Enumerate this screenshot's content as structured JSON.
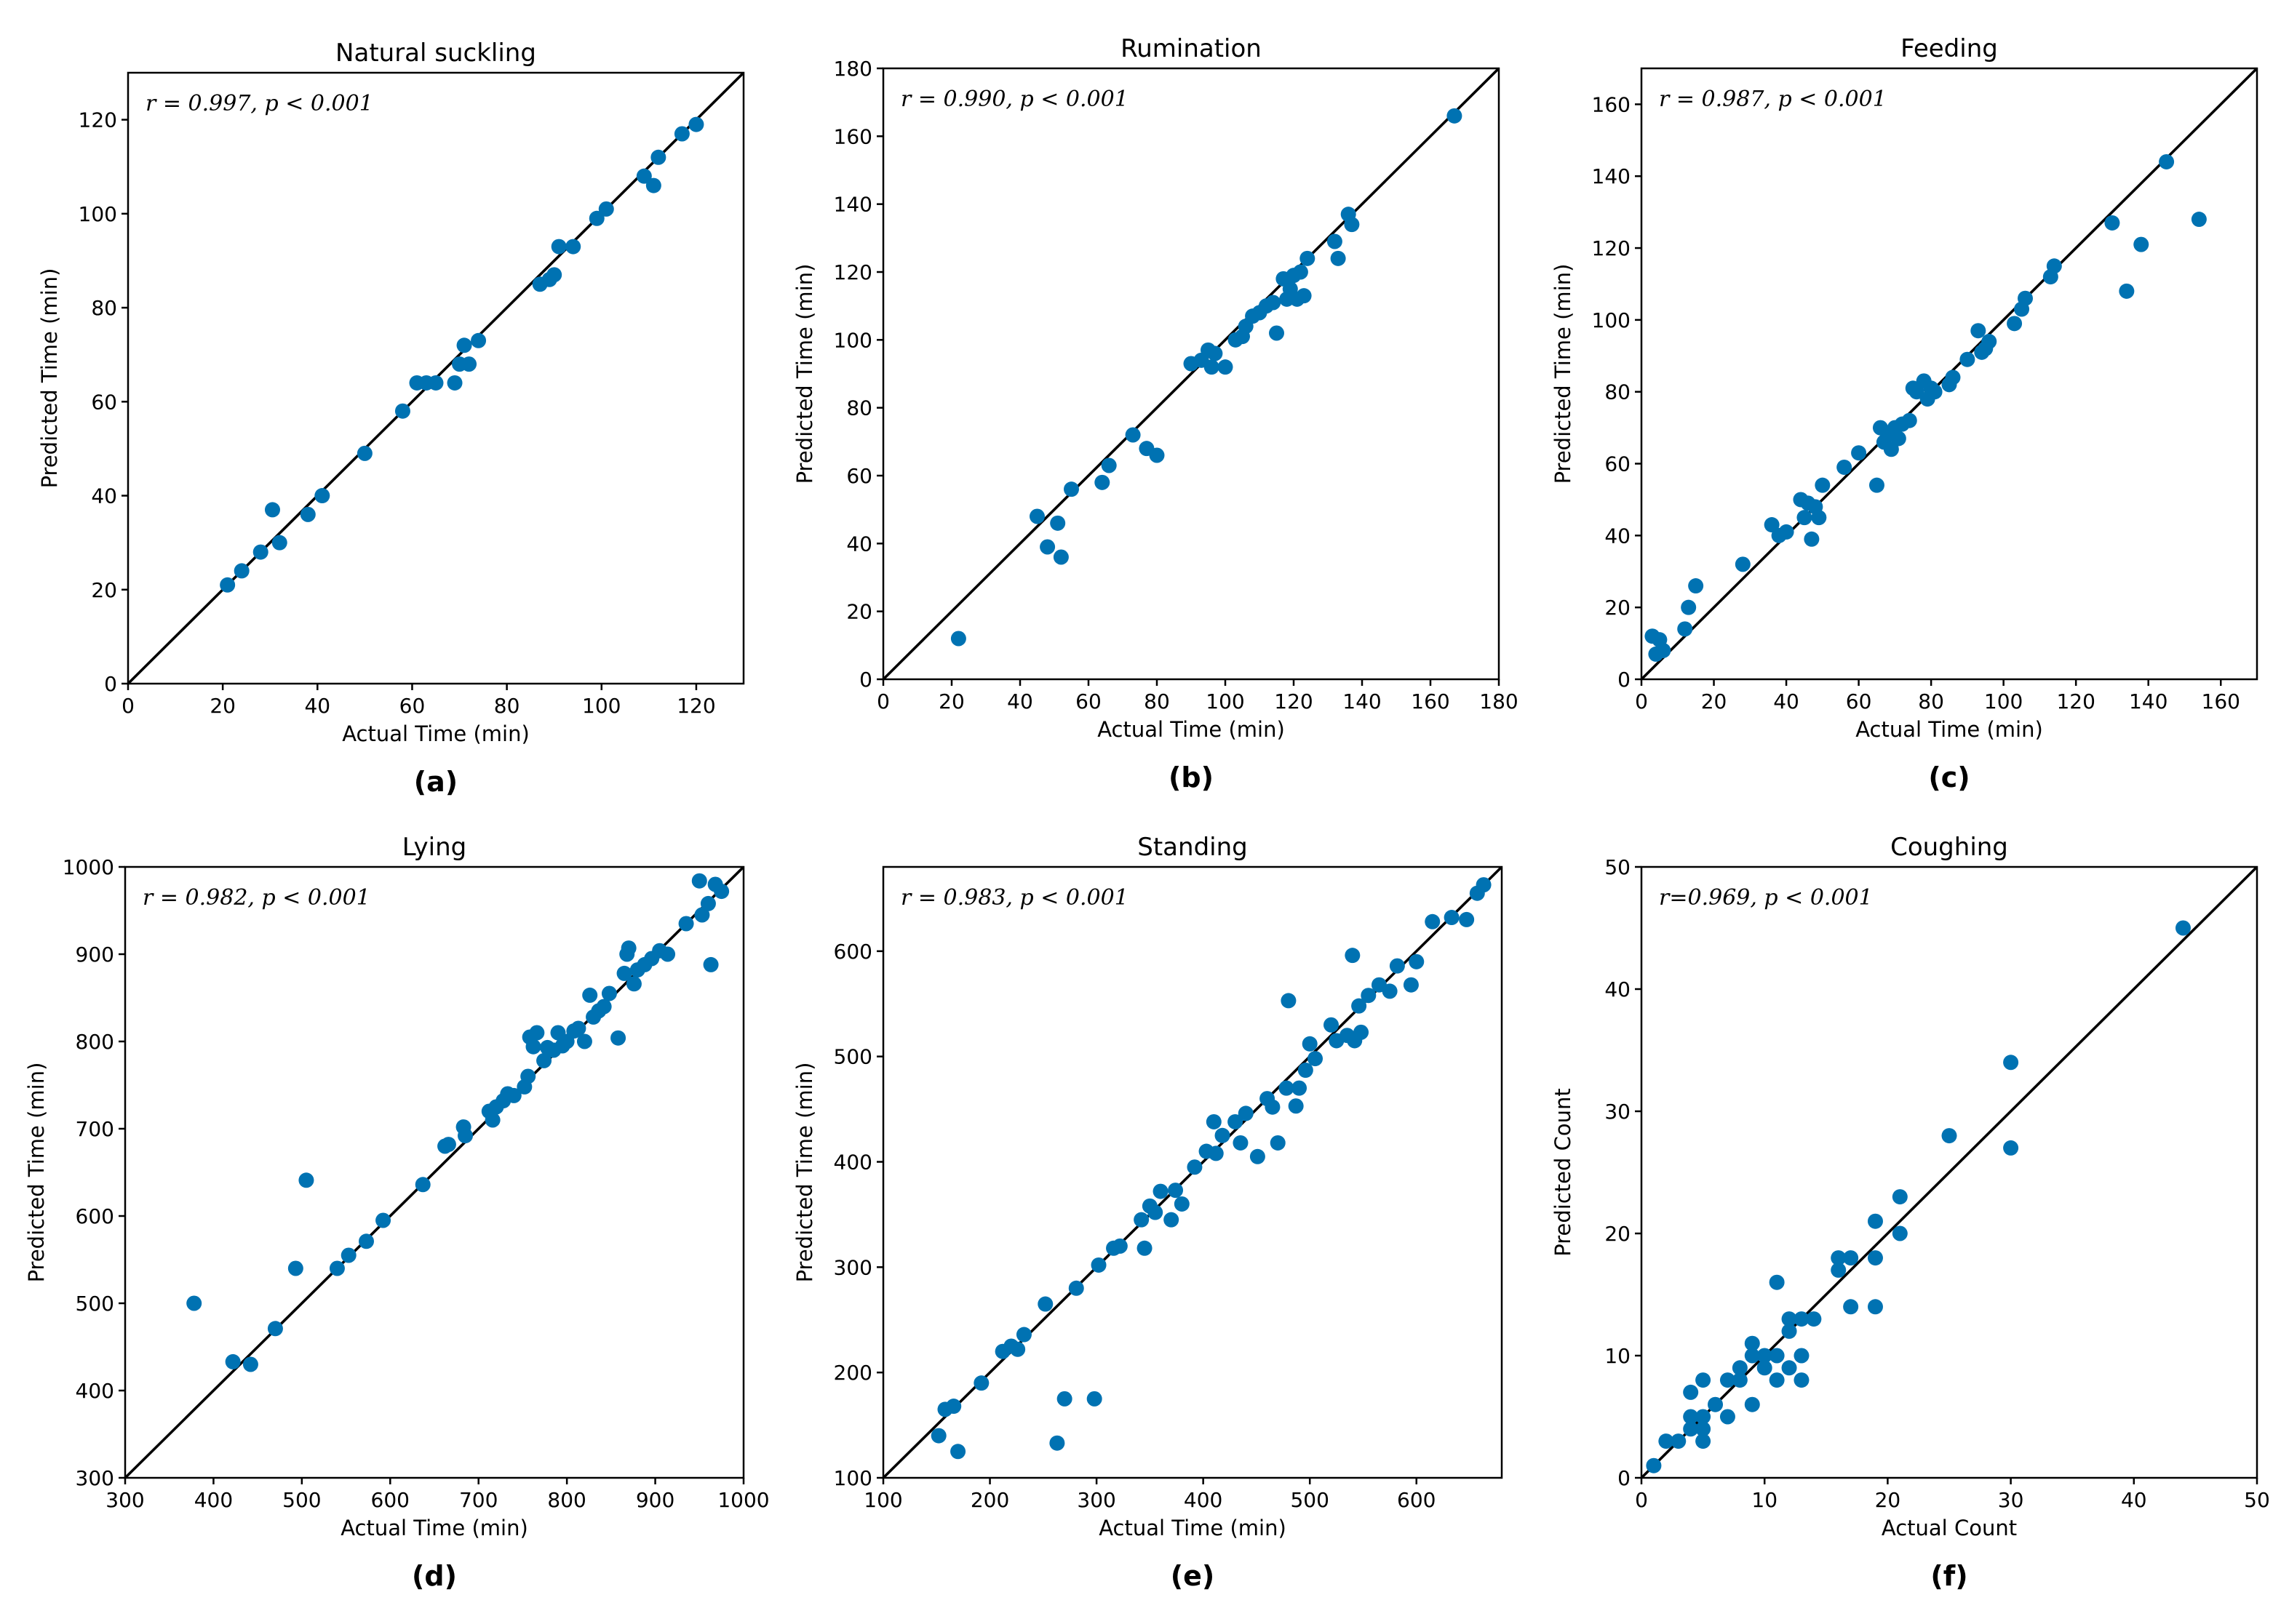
{
  "point_color": "#0072B2",
  "chart_data": [
    {
      "type": "scatter",
      "title": "Natural suckling",
      "xlabel": "Actual Time (min)",
      "ylabel": "Predicted Time (min)",
      "annotation": "r = 0.997, p < 0.001",
      "panel_label": "(a)",
      "xlim": [
        0,
        130
      ],
      "ylim": [
        0,
        130
      ],
      "xticks": [
        0,
        20,
        40,
        60,
        80,
        100,
        120
      ],
      "yticks": [
        0,
        20,
        40,
        60,
        80,
        100,
        120
      ],
      "x": [
        21,
        24,
        28,
        30.5,
        32,
        38,
        41,
        50,
        58,
        61,
        63,
        65,
        69,
        70,
        71,
        72,
        74,
        87,
        89,
        90,
        91,
        94,
        99,
        101,
        109,
        111,
        112,
        117,
        120
      ],
      "y": [
        21,
        24,
        28,
        37,
        30,
        36,
        40,
        49,
        58,
        64,
        64,
        64,
        64,
        68,
        72,
        68,
        73,
        85,
        86,
        87,
        93,
        93,
        99,
        101,
        108,
        106,
        112,
        117,
        119
      ]
    },
    {
      "type": "scatter",
      "title": "Rumination",
      "xlabel": "Actual Time (min)",
      "ylabel": "Predicted Time (min)",
      "annotation": "r = 0.990, p < 0.001",
      "panel_label": "(b)",
      "xlim": [
        0,
        180
      ],
      "ylim": [
        0,
        180
      ],
      "xticks": [
        0,
        20,
        40,
        60,
        80,
        100,
        120,
        140,
        160,
        180
      ],
      "yticks": [
        0,
        20,
        40,
        60,
        80,
        100,
        120,
        140,
        160,
        180
      ],
      "x": [
        22,
        45,
        48,
        51,
        52,
        55,
        64,
        66,
        73,
        77,
        80,
        90,
        93,
        95,
        96,
        97,
        100,
        103,
        105,
        106,
        108,
        110,
        112,
        114,
        115,
        117,
        118,
        119,
        120,
        121,
        122,
        123,
        124,
        132,
        133,
        136,
        137,
        167
      ],
      "y": [
        12,
        48,
        39,
        46,
        36,
        56,
        58,
        63,
        72,
        68,
        66,
        93,
        94,
        97,
        92,
        96,
        92,
        100,
        101,
        104,
        107,
        108,
        110,
        111,
        102,
        118,
        112,
        115,
        119,
        112,
        120,
        113,
        124,
        129,
        124,
        137,
        134,
        166
      ]
    },
    {
      "type": "scatter",
      "title": "Feeding",
      "xlabel": "Actual Time (min)",
      "ylabel": "Predicted Time (min)",
      "annotation": "r = 0.987, p < 0.001",
      "panel_label": "(c)",
      "xlim": [
        0,
        170
      ],
      "ylim": [
        0,
        170
      ],
      "xticks": [
        0,
        20,
        40,
        60,
        80,
        100,
        120,
        140,
        160
      ],
      "yticks": [
        0,
        20,
        40,
        60,
        80,
        100,
        120,
        140,
        160
      ],
      "x": [
        3,
        4,
        5,
        6,
        12,
        13,
        15,
        28,
        36,
        38,
        40,
        44,
        45,
        46,
        47,
        48,
        49,
        50,
        56,
        60,
        65,
        66,
        67,
        68,
        69,
        70,
        71,
        72,
        74,
        75,
        76,
        78,
        79,
        80,
        81,
        85,
        86,
        90,
        93,
        94,
        95,
        96,
        103,
        105,
        106,
        113,
        114,
        130,
        134,
        138,
        145,
        154
      ],
      "y": [
        12,
        7,
        11,
        8,
        14,
        20,
        26,
        32,
        43,
        40,
        41,
        50,
        45,
        49,
        39,
        48,
        45,
        54,
        59,
        63,
        54,
        70,
        66,
        68,
        64,
        70,
        67,
        71,
        72,
        81,
        80,
        83,
        78,
        81,
        80,
        82,
        84,
        89,
        97,
        91,
        92,
        94,
        99,
        103,
        106,
        112,
        115,
        127,
        108,
        121,
        144,
        128
      ]
    },
    {
      "type": "scatter",
      "title": "Lying",
      "xlabel": "Actual Time (min)",
      "ylabel": "Predicted Time (min)",
      "annotation": "r = 0.982, p < 0.001",
      "panel_label": "(d)",
      "xlim": [
        300,
        1000
      ],
      "ylim": [
        300,
        1000
      ],
      "xticks": [
        300,
        400,
        500,
        600,
        700,
        800,
        900,
        1000
      ],
      "yticks": [
        300,
        400,
        500,
        600,
        700,
        800,
        900,
        1000
      ],
      "x": [
        378,
        422,
        442,
        470,
        493,
        505,
        540,
        553,
        573,
        592,
        637,
        662,
        666,
        683,
        685,
        712,
        716,
        720,
        728,
        733,
        740,
        752,
        756,
        758,
        762,
        766,
        774,
        778,
        785,
        790,
        795,
        800,
        808,
        813,
        820,
        826,
        830,
        836,
        842,
        848,
        858,
        865,
        868,
        870,
        876,
        880,
        888,
        896,
        905,
        914,
        935,
        950,
        953,
        960,
        963,
        968,
        975
      ],
      "y": [
        500,
        433,
        430,
        471,
        540,
        641,
        540,
        555,
        571,
        595,
        636,
        680,
        682,
        702,
        692,
        720,
        710,
        725,
        732,
        740,
        738,
        748,
        760,
        805,
        794,
        810,
        778,
        793,
        790,
        810,
        795,
        800,
        812,
        815,
        800,
        853,
        828,
        835,
        840,
        855,
        804,
        878,
        900,
        907,
        866,
        882,
        888,
        895,
        904,
        900,
        935,
        984,
        945,
        958,
        888,
        980,
        972
      ]
    },
    {
      "type": "scatter",
      "title": "Standing",
      "xlabel": "Actual Time (min)",
      "ylabel": "Predicted Time (min)",
      "annotation": "r = 0.983, p < 0.001",
      "panel_label": "(e)",
      "xlim": [
        100,
        680
      ],
      "ylim": [
        100,
        680
      ],
      "xticks": [
        100,
        200,
        300,
        400,
        500,
        600
      ],
      "yticks": [
        100,
        200,
        300,
        400,
        500,
        600
      ],
      "x": [
        152,
        158,
        166,
        170,
        192,
        212,
        220,
        226,
        232,
        252,
        263,
        270,
        281,
        298,
        302,
        316,
        322,
        342,
        345,
        350,
        355,
        360,
        370,
        374,
        380,
        392,
        403,
        410,
        412,
        418,
        430,
        435,
        440,
        451,
        460,
        465,
        470,
        478,
        480,
        487,
        490,
        496,
        500,
        505,
        520,
        525,
        535,
        540,
        542,
        546,
        548,
        555,
        565,
        575,
        582,
        595,
        600,
        615,
        633,
        647,
        657,
        663
      ],
      "y": [
        140,
        165,
        168,
        125,
        190,
        220,
        225,
        222,
        236,
        265,
        133,
        175,
        280,
        175,
        302,
        318,
        320,
        345,
        318,
        358,
        352,
        372,
        345,
        373,
        360,
        395,
        410,
        438,
        408,
        425,
        438,
        418,
        446,
        405,
        460,
        452,
        418,
        470,
        553,
        453,
        470,
        487,
        512,
        498,
        530,
        515,
        520,
        596,
        515,
        548,
        523,
        558,
        568,
        562,
        586,
        568,
        590,
        628,
        632,
        630,
        655,
        663
      ]
    },
    {
      "type": "scatter",
      "title": "Coughing",
      "xlabel": "Actual Count",
      "ylabel": "Predicted Count",
      "annotation": "r=0.969, p < 0.001",
      "panel_label": "(f)",
      "xlim": [
        0,
        50
      ],
      "ylim": [
        0,
        50
      ],
      "xticks": [
        0,
        10,
        20,
        30,
        40,
        50
      ],
      "yticks": [
        0,
        10,
        20,
        30,
        40,
        50
      ],
      "x": [
        1,
        2,
        3,
        4,
        4,
        4,
        5,
        5,
        5,
        5,
        6,
        7,
        7,
        8,
        8,
        9,
        9,
        9,
        10,
        10,
        11,
        11,
        11,
        12,
        12,
        12,
        13,
        13,
        13,
        14,
        16,
        16,
        17,
        17,
        19,
        19,
        19,
        21,
        21,
        25,
        30,
        30,
        44
      ],
      "y": [
        1,
        3,
        3,
        5,
        7,
        4,
        8,
        5,
        4,
        3,
        6,
        8,
        5,
        8,
        9,
        11,
        10,
        6,
        10,
        9,
        16,
        10,
        8,
        12,
        13,
        9,
        10,
        8,
        13,
        13,
        17,
        18,
        18,
        14,
        21,
        18,
        14,
        23,
        20,
        28,
        34,
        27,
        45
      ]
    }
  ]
}
